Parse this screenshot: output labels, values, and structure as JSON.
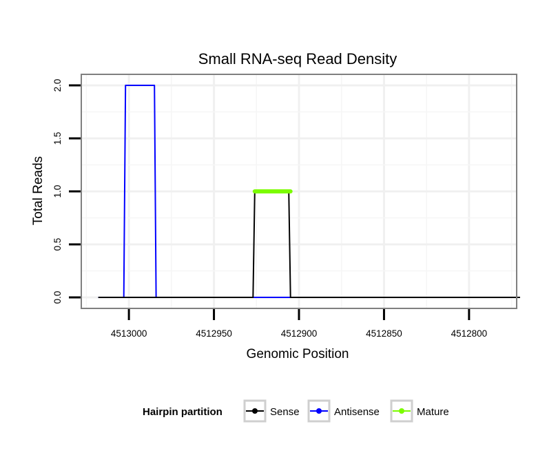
{
  "chart_data": {
    "type": "line",
    "title": "Small RNA-seq Read Density",
    "xlabel": "Genomic Position",
    "ylabel": "Total Reads",
    "xlim": [
      4513028,
      4512772
    ],
    "x_reversed": true,
    "ylim": [
      0,
      2.06
    ],
    "grid": true,
    "x_ticks": [
      4513000,
      4512950,
      4512900,
      4512850,
      4512800
    ],
    "x_tick_labels": [
      "4513000",
      "4512950",
      "4512900",
      "4512850",
      "4512800"
    ],
    "y_ticks": [
      0,
      0.5,
      1,
      1.5,
      2
    ],
    "y_tick_labels": [
      "0.0",
      "0.5",
      "1.0",
      "1.5",
      "2.0"
    ],
    "series": [
      {
        "name": "Sense",
        "color": "#000000",
        "x": [
          4513018,
          4512927,
          4512926,
          4512906,
          4512905,
          4512770
        ],
        "y": [
          0,
          0,
          1,
          1,
          0,
          0
        ]
      },
      {
        "name": "Antisense",
        "color": "#0000ff",
        "x": [
          4513018,
          4513003,
          4513002,
          4512985,
          4512984,
          4512927,
          4512905
        ],
        "y": [
          0,
          0,
          2,
          2,
          0,
          0,
          0
        ]
      },
      {
        "name": "Mature",
        "color": "#7cfc00",
        "x": [
          4512926,
          4512905
        ],
        "y": [
          1,
          1
        ]
      }
    ],
    "legend": {
      "title": "Hairpin partition",
      "position": "bottom",
      "entries": [
        {
          "label": "Sense",
          "color": "#000000"
        },
        {
          "label": "Antisense",
          "color": "#0000ff"
        },
        {
          "label": "Mature",
          "color": "#7cfc00"
        }
      ]
    }
  }
}
